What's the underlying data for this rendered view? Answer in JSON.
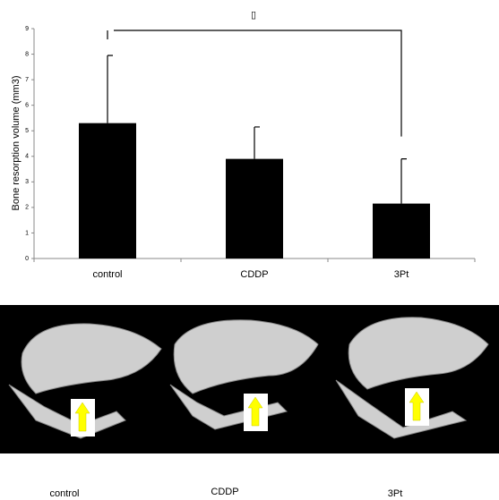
{
  "chart_data": {
    "type": "bar",
    "y_label": "Bone resorption volume (mm3)",
    "annotation": "▯",
    "categories": [
      "control",
      "CDDP",
      "3Pt"
    ],
    "values": [
      5.3,
      3.9,
      2.15
    ],
    "errors": [
      2.65,
      1.25,
      1.75
    ],
    "color": "#000000",
    "ylim": [
      0,
      9
    ],
    "yticks": [
      0,
      1,
      2,
      3,
      4,
      5,
      6,
      7,
      8,
      9
    ]
  },
  "image_panel": {
    "labels": [
      "control",
      "CDDP",
      "3Pt"
    ]
  }
}
